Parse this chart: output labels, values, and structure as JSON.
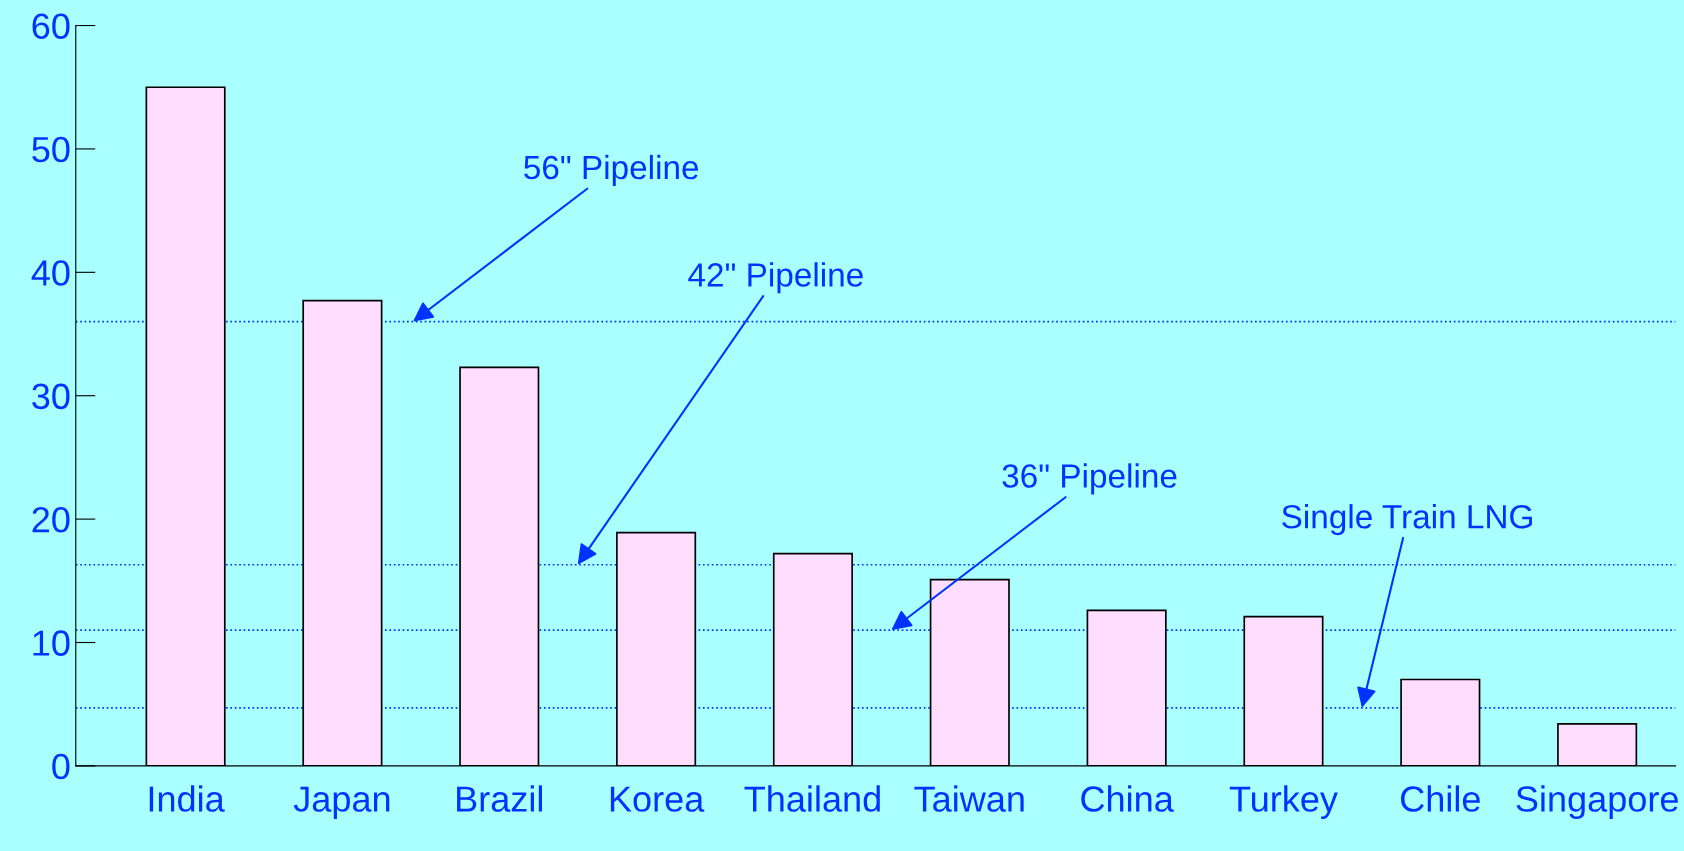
{
  "chart_data": {
    "type": "bar",
    "categories": [
      "India",
      "Japan",
      "Brazil",
      "Korea",
      "Thailand",
      "Taiwan",
      "China",
      "Turkey",
      "Chile",
      "Singapore"
    ],
    "values": [
      55.0,
      37.7,
      32.3,
      18.9,
      17.2,
      15.1,
      12.6,
      12.1,
      7.0,
      3.4
    ],
    "color": "#ffddff",
    "ylim": [
      0,
      60
    ],
    "yticks": [
      0,
      10,
      20,
      30,
      40,
      50,
      60
    ],
    "grid": false,
    "ref_lines": [
      {
        "axis": "y",
        "value": 36,
        "label": "56\" Pipeline",
        "color": "#0033ff",
        "line_style": "dotted"
      },
      {
        "axis": "y",
        "value": 16.3,
        "label": "42\" Pipeline",
        "color": "#0033ff",
        "line_style": "dotted"
      },
      {
        "axis": "y",
        "value": 11,
        "label": "36\" Pipeline",
        "color": "#0033ff",
        "line_style": "dotted"
      },
      {
        "axis": "y",
        "value": 4.7,
        "label": "Single Train LNG",
        "color": "#0033ff",
        "line_style": "dotted"
      }
    ]
  }
}
